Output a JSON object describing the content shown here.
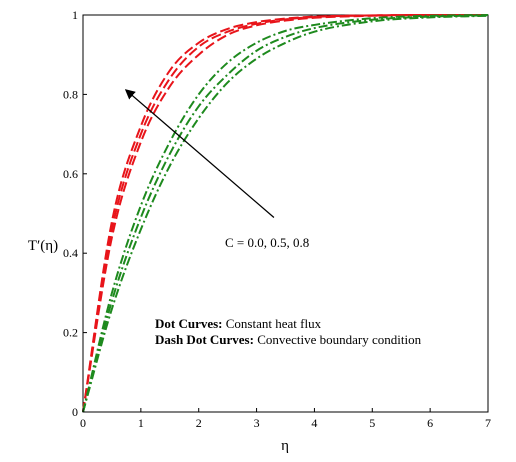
{
  "chart_data": {
    "type": "line",
    "title": "",
    "xlabel": "η",
    "ylabel": "T′(η)",
    "xlim": [
      0,
      7
    ],
    "ylim": [
      0,
      1
    ],
    "xticks": [
      "0",
      "1",
      "2",
      "3",
      "4",
      "5",
      "6",
      "7"
    ],
    "yticks": [
      "0",
      "0.2",
      "0.4",
      "0.6",
      "0.8",
      "1"
    ],
    "x": [
      0,
      0.5,
      1,
      1.5,
      2,
      2.5,
      3,
      3.5,
      4,
      5,
      6,
      7
    ],
    "series": [
      {
        "style": "dash",
        "color": "#e8141a",
        "values": [
          0,
          0.48,
          0.72,
          0.86,
          0.93,
          0.965,
          0.982,
          0.991,
          0.996,
          0.999,
          1.0,
          1.0
        ]
      },
      {
        "style": "dash",
        "color": "#e8141a",
        "values": [
          0,
          0.46,
          0.7,
          0.84,
          0.92,
          0.958,
          0.978,
          0.989,
          0.995,
          0.999,
          1.0,
          1.0
        ]
      },
      {
        "style": "dash",
        "color": "#e8141a",
        "values": [
          0,
          0.44,
          0.68,
          0.82,
          0.9,
          0.95,
          0.974,
          0.986,
          0.993,
          0.998,
          1.0,
          1.0
        ]
      },
      {
        "style": "dashdot",
        "color": "#1e8a1e",
        "values": [
          0,
          0.3,
          0.52,
          0.68,
          0.8,
          0.88,
          0.93,
          0.96,
          0.975,
          0.992,
          0.998,
          1.0
        ]
      },
      {
        "style": "dashdot",
        "color": "#1e8a1e",
        "values": [
          0,
          0.28,
          0.49,
          0.65,
          0.77,
          0.85,
          0.91,
          0.945,
          0.967,
          0.988,
          0.996,
          0.999
        ]
      },
      {
        "style": "dashdot",
        "color": "#1e8a1e",
        "values": [
          0,
          0.26,
          0.46,
          0.62,
          0.74,
          0.83,
          0.89,
          0.93,
          0.958,
          0.984,
          0.994,
          0.998
        ]
      }
    ],
    "annotations": {
      "arrow_label": "C = 0.0, 0.5, 0.8",
      "arrow_from": [
        3.3,
        0.49
      ],
      "arrow_to": [
        0.75,
        0.81
      ],
      "legend_line1_bold": "Dot Curves:",
      "legend_line1_text": " Constant heat flux",
      "legend_line2_bold": "Dash Dot Curves:",
      "legend_line2_text": " Convective boundary condition"
    },
    "grid": false,
    "legend_position": "bottom-center"
  }
}
